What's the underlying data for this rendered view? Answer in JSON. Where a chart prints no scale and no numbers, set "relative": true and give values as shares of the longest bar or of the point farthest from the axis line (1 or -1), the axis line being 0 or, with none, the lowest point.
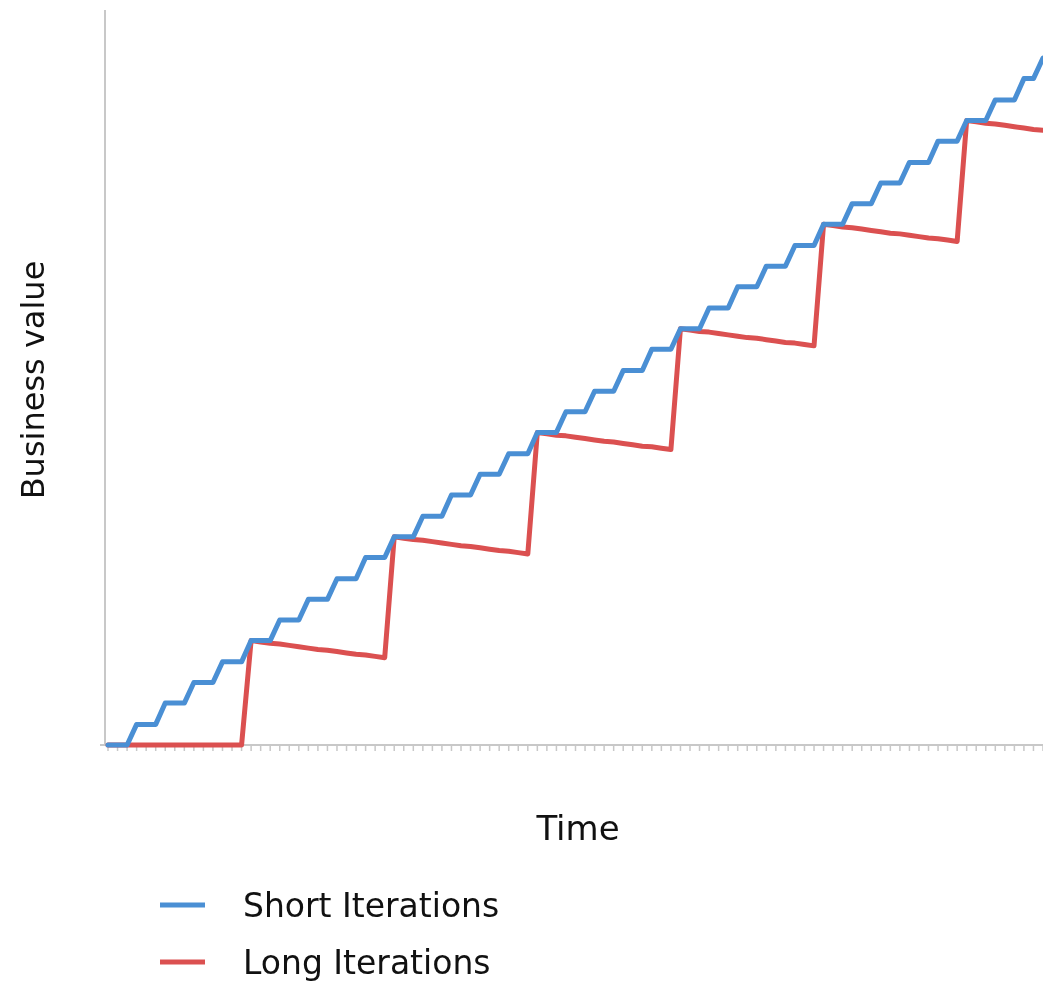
{
  "chart_data": {
    "type": "line",
    "xlabel": "Time",
    "ylabel": "Business value",
    "relative": true,
    "legend": "bottom",
    "line_style": "solid",
    "marker": "none",
    "grid": false,
    "categories": [
      null,
      null,
      null,
      null,
      null,
      null,
      null,
      null,
      null,
      null,
      null,
      null,
      null,
      null,
      null,
      null,
      null,
      null,
      null,
      null,
      null,
      null,
      null,
      null,
      null,
      null,
      null,
      null,
      null,
      null,
      null,
      null,
      null,
      null,
      null,
      null,
      null,
      null,
      null,
      null,
      null,
      null,
      null,
      null,
      null,
      null,
      null,
      null,
      null,
      null,
      null,
      null,
      null,
      null,
      null,
      null,
      null,
      null,
      null,
      null,
      null,
      null,
      null,
      null,
      null,
      null,
      null,
      null,
      null,
      null,
      null,
      null,
      null,
      null,
      null,
      null,
      null,
      null,
      null,
      null,
      null,
      null,
      null,
      null,
      null,
      null,
      null,
      null,
      null,
      null,
      null,
      null,
      null,
      null,
      null,
      null,
      null,
      null,
      null
    ],
    "series": [
      {
        "name": "Short Iterations",
        "color": "#4a8fd4",
        "values": [
          0,
          0,
          0,
          0.03,
          0.03,
          0.03,
          0.061,
          0.061,
          0.061,
          0.091,
          0.091,
          0.091,
          0.121,
          0.121,
          0.121,
          0.152,
          0.152,
          0.152,
          0.182,
          0.182,
          0.182,
          0.212,
          0.212,
          0.212,
          0.242,
          0.242,
          0.242,
          0.273,
          0.273,
          0.273,
          0.303,
          0.303,
          0.303,
          0.333,
          0.333,
          0.333,
          0.364,
          0.364,
          0.364,
          0.394,
          0.394,
          0.394,
          0.424,
          0.424,
          0.424,
          0.455,
          0.455,
          0.455,
          0.485,
          0.485,
          0.485,
          0.515,
          0.515,
          0.515,
          0.545,
          0.545,
          0.545,
          0.576,
          0.576,
          0.576,
          0.606,
          0.606,
          0.606,
          0.636,
          0.636,
          0.636,
          0.667,
          0.667,
          0.667,
          0.697,
          0.697,
          0.697,
          0.727,
          0.727,
          0.727,
          0.758,
          0.758,
          0.758,
          0.788,
          0.788,
          0.788,
          0.818,
          0.818,
          0.818,
          0.848,
          0.848,
          0.848,
          0.879,
          0.879,
          0.879,
          0.909,
          0.909,
          0.909,
          0.939,
          0.939,
          0.939,
          0.97,
          0.97,
          1
        ]
      },
      {
        "name": "Long Iterations",
        "color": "#db5050",
        "values": [
          0,
          0,
          0,
          0,
          0,
          0,
          0,
          0,
          0,
          0,
          0,
          0,
          0,
          0,
          0,
          0.152,
          0.15,
          0.148,
          0.147,
          0.145,
          0.143,
          0.141,
          0.139,
          0.138,
          0.136,
          0.134,
          0.132,
          0.131,
          0.129,
          0.127,
          0.303,
          0.301,
          0.299,
          0.298,
          0.296,
          0.294,
          0.292,
          0.29,
          0.289,
          0.287,
          0.285,
          0.283,
          0.282,
          0.28,
          0.278,
          0.455,
          0.453,
          0.451,
          0.45,
          0.448,
          0.446,
          0.444,
          0.442,
          0.441,
          0.439,
          0.437,
          0.435,
          0.434,
          0.432,
          0.43,
          0.606,
          0.604,
          0.602,
          0.601,
          0.599,
          0.597,
          0.595,
          0.593,
          0.592,
          0.59,
          0.588,
          0.586,
          0.585,
          0.583,
          0.581,
          0.758,
          0.756,
          0.754,
          0.753,
          0.751,
          0.749,
          0.747,
          0.745,
          0.744,
          0.742,
          0.74,
          0.738,
          0.737,
          0.735,
          0.733,
          0.909,
          0.907,
          0.905,
          0.904,
          0.902,
          0.9,
          0.898,
          0.896,
          0.895
        ]
      }
    ]
  }
}
